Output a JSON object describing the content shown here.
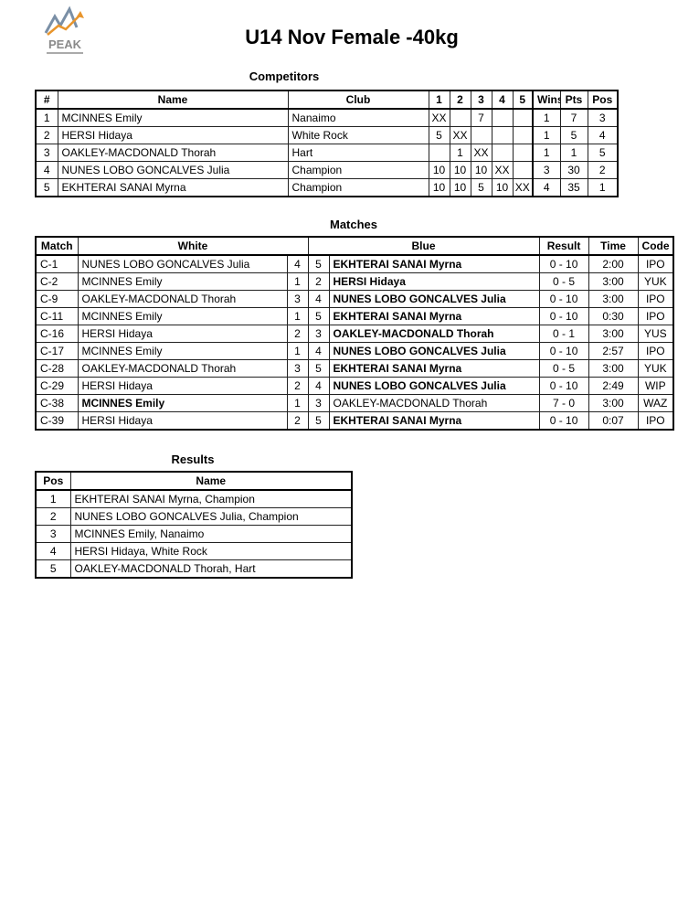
{
  "title": "U14 Nov Female -40kg",
  "logo": {
    "text": "PEAK"
  },
  "competitors": {
    "heading": "Competitors",
    "headers": [
      "#",
      "Name",
      "Club",
      "1",
      "2",
      "3",
      "4",
      "5",
      "Wins",
      "Pts",
      "Pos"
    ],
    "rows": [
      [
        "1",
        "MCINNES Emily",
        "Nanaimo",
        "XX",
        "",
        "7",
        "",
        "",
        "1",
        "7",
        "3"
      ],
      [
        "2",
        "HERSI Hidaya",
        "White Rock",
        "5",
        "XX",
        "",
        "",
        "",
        "1",
        "5",
        "4"
      ],
      [
        "3",
        "OAKLEY-MACDONALD Thorah",
        "Hart",
        "",
        "1",
        "XX",
        "",
        "",
        "1",
        "1",
        "5"
      ],
      [
        "4",
        "NUNES LOBO GONCALVES Julia",
        "Champion",
        "10",
        "10",
        "10",
        "XX",
        "",
        "3",
        "30",
        "2"
      ],
      [
        "5",
        "EKHTERAI SANAI Myrna",
        "Champion",
        "10",
        "10",
        "5",
        "10",
        "XX",
        "4",
        "35",
        "1"
      ]
    ]
  },
  "matches": {
    "heading": "Matches",
    "headers": [
      "Match",
      "White",
      "Blue",
      "Result",
      "Time",
      "Code"
    ],
    "rows": [
      {
        "match": "C-1",
        "white": "NUNES LOBO GONCALVES Julia",
        "wn": "4",
        "bn": "5",
        "blue": "EKHTERAI SANAI Myrna",
        "winner": "blue",
        "result": "0 - 10",
        "time": "2:00",
        "code": "IPO"
      },
      {
        "match": "C-2",
        "white": "MCINNES Emily",
        "wn": "1",
        "bn": "2",
        "blue": "HERSI Hidaya",
        "winner": "blue",
        "result": "0 - 5",
        "time": "3:00",
        "code": "YUK"
      },
      {
        "match": "C-9",
        "white": "OAKLEY-MACDONALD Thorah",
        "wn": "3",
        "bn": "4",
        "blue": "NUNES LOBO GONCALVES Julia",
        "winner": "blue",
        "result": "0 - 10",
        "time": "3:00",
        "code": "IPO"
      },
      {
        "match": "C-11",
        "white": "MCINNES Emily",
        "wn": "1",
        "bn": "5",
        "blue": "EKHTERAI SANAI Myrna",
        "winner": "blue",
        "result": "0 - 10",
        "time": "0:30",
        "code": "IPO"
      },
      {
        "match": "C-16",
        "white": "HERSI Hidaya",
        "wn": "2",
        "bn": "3",
        "blue": "OAKLEY-MACDONALD Thorah",
        "winner": "blue",
        "result": "0 - 1",
        "time": "3:00",
        "code": "YUS"
      },
      {
        "match": "C-17",
        "white": "MCINNES Emily",
        "wn": "1",
        "bn": "4",
        "blue": "NUNES LOBO GONCALVES Julia",
        "winner": "blue",
        "result": "0 - 10",
        "time": "2:57",
        "code": "IPO"
      },
      {
        "match": "C-28",
        "white": "OAKLEY-MACDONALD Thorah",
        "wn": "3",
        "bn": "5",
        "blue": "EKHTERAI SANAI Myrna",
        "winner": "blue",
        "result": "0 - 5",
        "time": "3:00",
        "code": "YUK"
      },
      {
        "match": "C-29",
        "white": "HERSI Hidaya",
        "wn": "2",
        "bn": "4",
        "blue": "NUNES LOBO GONCALVES Julia",
        "winner": "blue",
        "result": "0 - 10",
        "time": "2:49",
        "code": "WIP"
      },
      {
        "match": "C-38",
        "white": "MCINNES Emily",
        "wn": "1",
        "bn": "3",
        "blue": "OAKLEY-MACDONALD Thorah",
        "winner": "white",
        "result": "7 - 0",
        "time": "3:00",
        "code": "WAZ"
      },
      {
        "match": "C-39",
        "white": "HERSI Hidaya",
        "wn": "2",
        "bn": "5",
        "blue": "EKHTERAI SANAI Myrna",
        "winner": "blue",
        "result": "0 - 10",
        "time": "0:07",
        "code": "IPO"
      }
    ]
  },
  "results": {
    "heading": "Results",
    "headers": [
      "Pos",
      "Name"
    ],
    "rows": [
      [
        "1",
        "EKHTERAI SANAI Myrna, Champion"
      ],
      [
        "2",
        "NUNES LOBO GONCALVES Julia, Champion"
      ],
      [
        "3",
        "MCINNES Emily, Nanaimo"
      ],
      [
        "4",
        "HERSI Hidaya, White Rock"
      ],
      [
        "5",
        "OAKLEY-MACDONALD Thorah, Hart"
      ]
    ]
  }
}
